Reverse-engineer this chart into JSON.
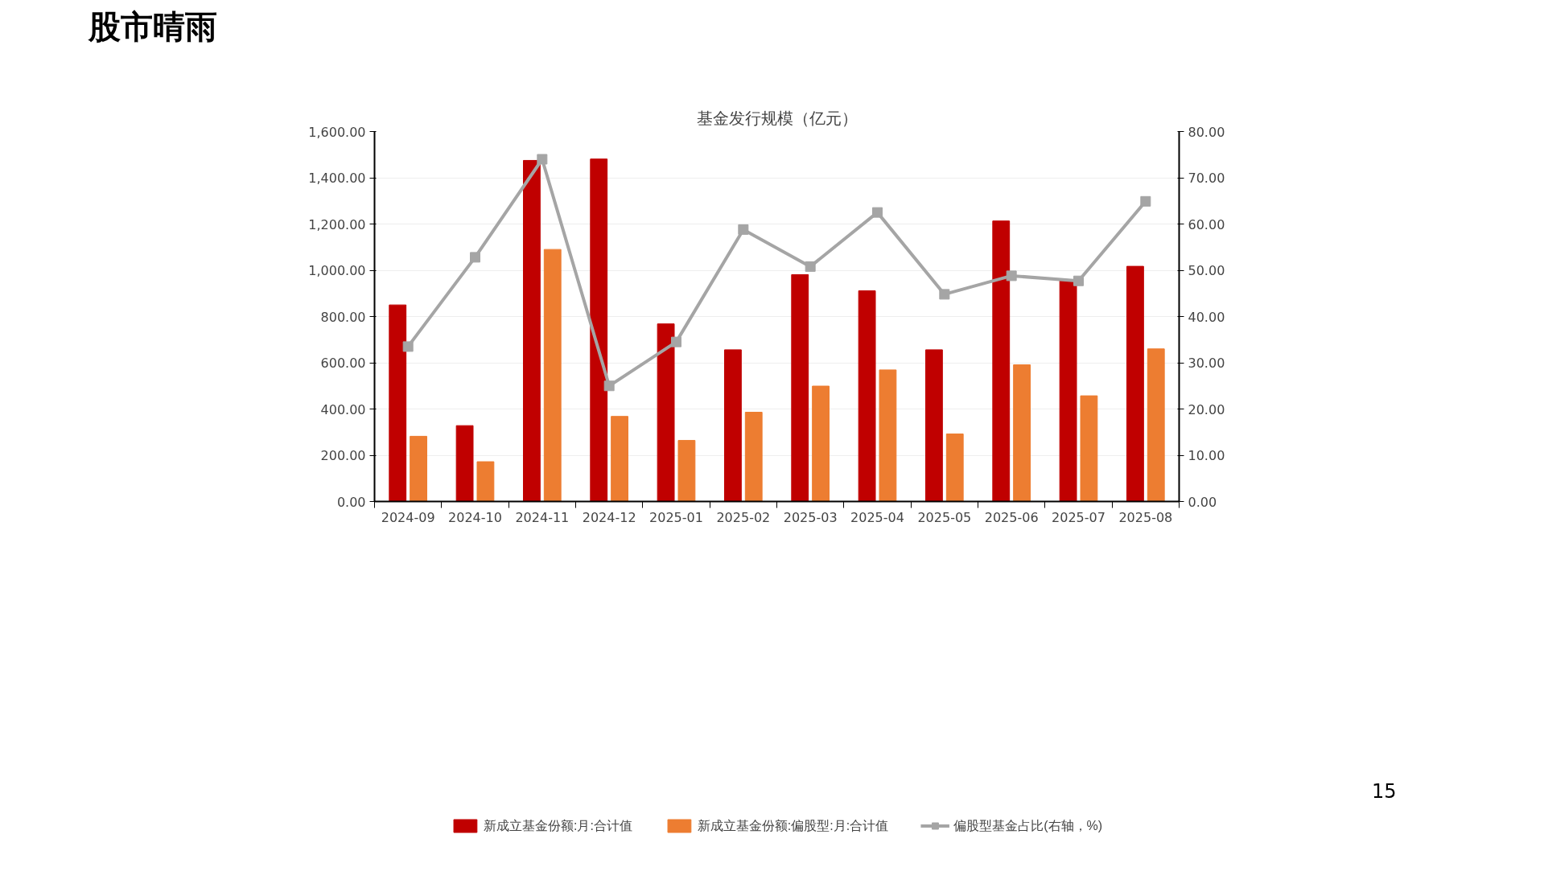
{
  "chart_data": {
    "type": "bar",
    "title": "基金发行规模（亿元）",
    "annotations": [
      "股市晴雨",
      "15"
    ],
    "categories": [
      "2024-09",
      "2024-10",
      "2024-11",
      "2024-12",
      "2025-01",
      "2025-02",
      "2025-03",
      "2025-04",
      "2025-05",
      "2025-06",
      "2025-07",
      "2025-08"
    ],
    "series": [
      {
        "name": "新成立基金份额:月:合计值",
        "color": "#c00000",
        "values": [
          850,
          328,
          1475,
          1481,
          768,
          656,
          981,
          911,
          656,
          1213,
          955,
          1017
        ]
      },
      {
        "name": "新成立基金份额:偏股型:月:合计值",
        "color": "#ed7d31",
        "values": [
          282,
          172,
          1090,
          368,
          264,
          386,
          499,
          569,
          292,
          591,
          457,
          660
        ]
      },
      {
        "name": "偏股型基金占比(右轴，%)",
        "color": "#a5a5a5",
        "type": "line",
        "axis": "y2",
        "marker": "square",
        "values": [
          33.5,
          52.8,
          74,
          25,
          34.5,
          58.8,
          50.8,
          62.5,
          44.8,
          48.8,
          47.7,
          64.9
        ]
      }
    ],
    "ylim": [
      0,
      1600
    ],
    "yticks": [
      {
        "value": 0,
        "label": "0.00"
      },
      {
        "value": 200,
        "label": "200.00"
      },
      {
        "value": 400,
        "label": "400.00"
      },
      {
        "value": 600,
        "label": "600.00"
      },
      {
        "value": 800,
        "label": "800.00"
      },
      {
        "value": 1000,
        "label": "1,000.00"
      },
      {
        "value": 1200,
        "label": "1,200.00"
      },
      {
        "value": 1400,
        "label": "1,400.00"
      },
      {
        "value": 1600,
        "label": "1,600.00"
      }
    ],
    "y2lim": [
      0,
      80
    ],
    "y2ticks": [
      {
        "value": 0,
        "label": "0.00"
      },
      {
        "value": 10,
        "label": "10.00"
      },
      {
        "value": 20,
        "label": "20.00"
      },
      {
        "value": 30,
        "label": "30.00"
      },
      {
        "value": 40,
        "label": "40.00"
      },
      {
        "value": 50,
        "label": "50.00"
      },
      {
        "value": 60,
        "label": "60.00"
      },
      {
        "value": 70,
        "label": "70.00"
      },
      {
        "value": 80,
        "label": "80.00"
      }
    ],
    "grid": "y",
    "legend": "bottom"
  }
}
